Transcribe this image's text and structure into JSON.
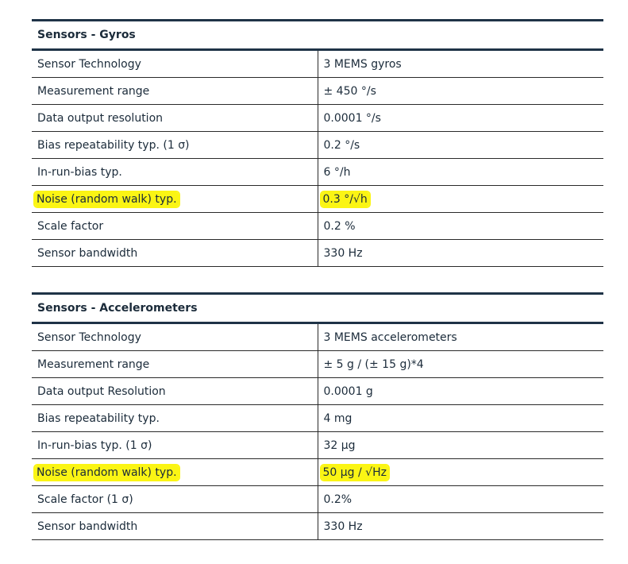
{
  "gyros": {
    "title": "Sensors - Gyros",
    "rows": [
      {
        "label": "Sensor Technology",
        "value": "3 MEMS gyros",
        "highlight": false
      },
      {
        "label": "Measurement range",
        "value": "± 450 °/s",
        "highlight": false
      },
      {
        "label": "Data output resolution",
        "value": "0.0001 °/s",
        "highlight": false
      },
      {
        "label": "Bias repeatability typ. (1 σ)",
        "value": "0.2 °/s",
        "highlight": false
      },
      {
        "label": "In-run-bias typ.",
        "value": "6 °/h",
        "highlight": false
      },
      {
        "label": "Noise (random walk) typ.",
        "value": "0.3 °/√h",
        "highlight": true
      },
      {
        "label": "Scale factor",
        "value": "0.2 %",
        "highlight": false
      },
      {
        "label": "Sensor bandwidth",
        "value": "330 Hz",
        "highlight": false
      }
    ]
  },
  "accelerometers": {
    "title": "Sensors - Accelerometers",
    "rows": [
      {
        "label": "Sensor Technology",
        "value": "3 MEMS accelerometers",
        "highlight": false
      },
      {
        "label": "Measurement range",
        "value": "± 5 g / (± 15 g)*4",
        "highlight": false
      },
      {
        "label": "Data output Resolution",
        "value": "0.0001 g",
        "highlight": false
      },
      {
        "label": "Bias repeatability typ.",
        "value": "4 mg",
        "highlight": false
      },
      {
        "label": "In-run-bias typ. (1 σ)",
        "value": "32 µg",
        "highlight": false
      },
      {
        "label": "Noise (random walk) typ.",
        "value": "50 µg / √Hz",
        "highlight": true
      },
      {
        "label": "Scale factor (1 σ)",
        "value": "0.2%",
        "highlight": false
      },
      {
        "label": "Sensor bandwidth",
        "value": "330 Hz",
        "highlight": false
      }
    ]
  },
  "colors": {
    "header_rule": "#1f3347",
    "text": "#1b2b3a",
    "highlight": "#fbf514"
  }
}
